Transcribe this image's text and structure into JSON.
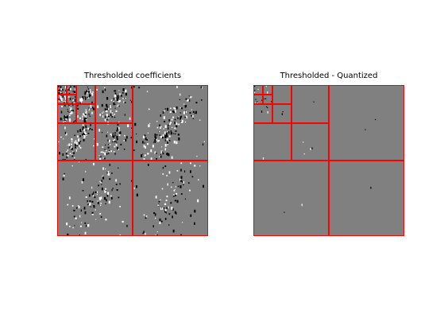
{
  "panels": [
    {
      "title": "Thresholded coefficients"
    },
    {
      "title": "Thresholded - Quantized"
    }
  ],
  "colors": {
    "background": "#ffffff",
    "coefficient_field": "#808080",
    "subband_border": "#ff0000",
    "positive_coefficient": "#ffffff",
    "negative_coefficient": "#000000"
  }
}
